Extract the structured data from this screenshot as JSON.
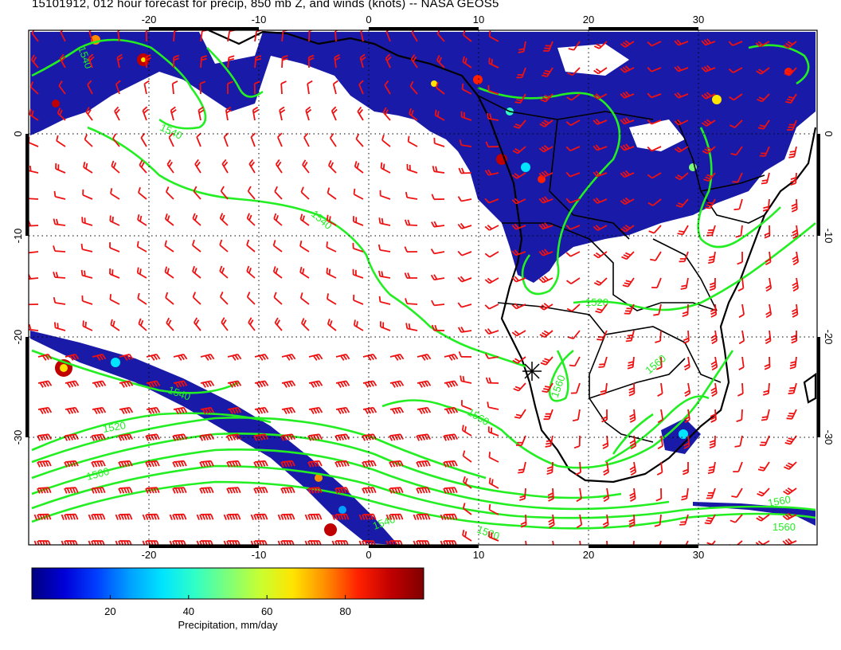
{
  "title": "15101912, 012 hour forecast for precip, 850 mb Z, and winds (knots) -- NASA GEOS5",
  "axes": {
    "lon_ticks": [
      "-20",
      "-10",
      "0",
      "10",
      "20",
      "30"
    ],
    "lat_ticks": [
      "0",
      "-10",
      "-20",
      "-30"
    ],
    "lon_range": [
      -30,
      41
    ],
    "lat_range": [
      -40,
      10
    ]
  },
  "contours": {
    "color": "#22ee22",
    "labels": [
      "1540",
      "1540",
      "1540",
      "1540",
      "1520",
      "1520",
      "1500",
      "1560",
      "1560",
      "1560",
      "1540",
      "1520",
      "1560",
      "1560"
    ]
  },
  "wind_barbs": {
    "color": "#ee1111",
    "unit": "knots"
  },
  "precip": {
    "color_low": "#1a1aa8",
    "color_high": "#8b0000"
  },
  "colorbar": {
    "label": "Precipitation, mm/day",
    "ticks": [
      "20",
      "40",
      "60",
      "80"
    ],
    "tick_values": [
      20,
      40,
      60,
      80
    ],
    "range": [
      0,
      100
    ],
    "colors": [
      "#00007f",
      "#0000d8",
      "#0040ff",
      "#00a0ff",
      "#00e4ff",
      "#30ffc6",
      "#7dff7a",
      "#c8ff30",
      "#ffe400",
      "#ff8c00",
      "#ff2000",
      "#c00000",
      "#7f0000"
    ]
  },
  "marker": {
    "label": "site-marker"
  }
}
